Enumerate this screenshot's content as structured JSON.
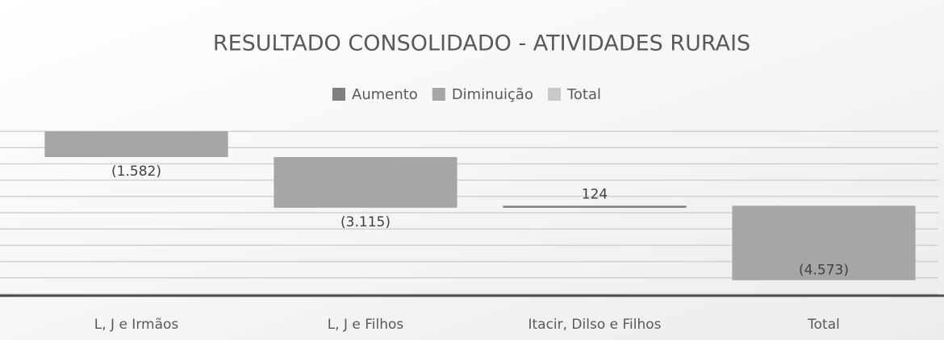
{
  "chart_data": {
    "type": "waterfall",
    "title": "RESULTADO CONSOLIDADO - ATIVIDADES RURAIS",
    "legend": [
      {
        "name": "Aumento",
        "color": "#7f7f7f"
      },
      {
        "name": "Diminuição",
        "color": "#a6a6a6"
      },
      {
        "name": "Total",
        "color": "#c9c9c9"
      }
    ],
    "categories": [
      "L, J e Irmãos",
      "L, J e Filhos",
      "Itacir, Dilso e Filhos",
      "Total"
    ],
    "values": [
      -1582,
      -3115,
      124,
      -4573
    ],
    "value_labels": [
      "(1.582)",
      "(3.115)",
      "124",
      "(4.573)"
    ],
    "ylim": [
      -10000,
      0
    ],
    "yticks": [
      -10000,
      -9000,
      -8000,
      -7000,
      -6000,
      -5000,
      -4000,
      -3000,
      -2000,
      -1000,
      0
    ],
    "grid": true
  }
}
